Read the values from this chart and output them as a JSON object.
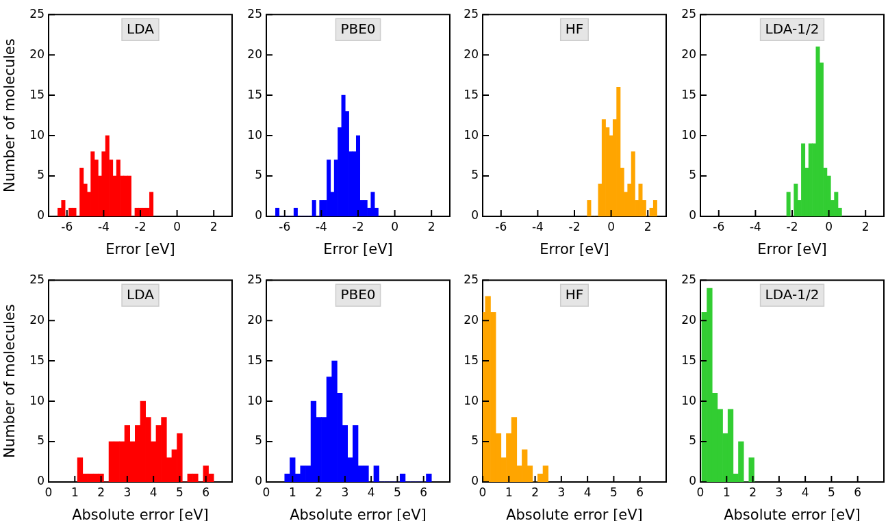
{
  "chart_data": [
    {
      "type": "histogram",
      "title": "LDA",
      "xlabel": "Error [eV]",
      "ylabel": "Number of molecules",
      "color": "#ff0000",
      "bins": [
        -6.5,
        -6.3,
        -6.1,
        -5.9,
        -5.7,
        -5.5,
        -5.3,
        -5.1,
        -4.9,
        -4.7,
        -4.5,
        -4.3,
        -4.1,
        -3.9,
        -3.7,
        -3.5,
        -3.3,
        -3.1,
        -2.9,
        -2.7,
        -2.5,
        -2.3,
        -2.1,
        -1.9,
        -1.7,
        -1.5,
        -1.3
      ],
      "values": [
        1,
        2,
        0,
        1,
        1,
        0,
        6,
        4,
        3,
        8,
        7,
        5,
        8,
        10,
        7,
        5,
        7,
        5,
        5,
        5,
        0,
        1,
        1,
        1,
        1,
        3
      ],
      "xlim": [
        -7,
        3
      ],
      "xticks": [
        -6,
        -4,
        -2,
        0,
        2
      ],
      "ylim": [
        0,
        25
      ],
      "yticks": [
        0,
        5,
        10,
        15,
        20,
        25
      ]
    },
    {
      "type": "histogram",
      "title": "PBE0",
      "xlabel": "Error [eV]",
      "color": "#0000ff",
      "bins": [
        -6.5,
        -6.3,
        -6.1,
        -5.9,
        -5.7,
        -5.5,
        -5.3,
        -5.1,
        -4.9,
        -4.7,
        -4.5,
        -4.3,
        -4.1,
        -3.9,
        -3.7,
        -3.5,
        -3.3,
        -3.1,
        -2.9,
        -2.7,
        -2.5,
        -2.3,
        -2.1,
        -1.9,
        -1.7,
        -1.5,
        -1.3,
        -1.1,
        -0.9
      ],
      "values": [
        1,
        0,
        0,
        0,
        0,
        1,
        0,
        0,
        0,
        0,
        2,
        0,
        2,
        2,
        7,
        3,
        7,
        11,
        15,
        13,
        8,
        8,
        10,
        2,
        2,
        1,
        3,
        1
      ],
      "xlim": [
        -7,
        3
      ],
      "xticks": [
        -6,
        -4,
        -2,
        0,
        2
      ],
      "ylim": [
        0,
        25
      ],
      "yticks": [
        0,
        5,
        10,
        15,
        20,
        25
      ]
    },
    {
      "type": "histogram",
      "title": "HF",
      "xlabel": "Error [eV]",
      "color": "#ffa500",
      "bins": [
        -1.3,
        -1.1,
        -0.9,
        -0.7,
        -0.5,
        -0.3,
        -0.1,
        0.1,
        0.3,
        0.5,
        0.7,
        0.9,
        1.1,
        1.3,
        1.5,
        1.7,
        1.9,
        2.1,
        2.3,
        2.5
      ],
      "values": [
        2,
        0,
        0,
        4,
        12,
        11,
        10,
        12,
        16,
        6,
        3,
        4,
        8,
        2,
        4,
        2,
        0,
        1,
        2
      ],
      "xlim": [
        -7,
        3
      ],
      "xticks": [
        -6,
        -4,
        -2,
        0,
        2
      ],
      "ylim": [
        0,
        25
      ],
      "yticks": [
        0,
        5,
        10,
        15,
        20,
        25
      ]
    },
    {
      "type": "histogram",
      "title": "LDA-1/2",
      "xlabel": "Error [eV]",
      "color": "#32cd32",
      "bins": [
        -2.3,
        -2.1,
        -1.9,
        -1.7,
        -1.5,
        -1.3,
        -1.1,
        -0.9,
        -0.7,
        -0.5,
        -0.3,
        -0.1,
        0.1,
        0.3,
        0.5,
        0.7
      ],
      "values": [
        3,
        0,
        4,
        2,
        9,
        6,
        9,
        9,
        21,
        19,
        6,
        5,
        2,
        3,
        1
      ],
      "xlim": [
        -7,
        3
      ],
      "xticks": [
        -6,
        -4,
        -2,
        0,
        2
      ],
      "ylim": [
        0,
        25
      ],
      "yticks": [
        0,
        5,
        10,
        15,
        20,
        25
      ]
    },
    {
      "type": "histogram",
      "title": "LDA",
      "xlabel": "Absolute error [eV]",
      "ylabel": "Number of molecules",
      "color": "#ff0000",
      "bins": [
        1.1,
        1.3,
        1.5,
        1.7,
        1.9,
        2.1,
        2.3,
        2.5,
        2.7,
        2.9,
        3.1,
        3.3,
        3.5,
        3.7,
        3.9,
        4.1,
        4.3,
        4.5,
        4.7,
        4.9,
        5.1,
        5.3,
        5.5,
        5.7,
        5.9,
        6.1,
        6.3
      ],
      "values": [
        3,
        1,
        1,
        1,
        1,
        0,
        5,
        5,
        5,
        7,
        5,
        7,
        10,
        8,
        5,
        7,
        8,
        3,
        4,
        6,
        0,
        1,
        1,
        0,
        2,
        1
      ],
      "xlim": [
        0,
        7
      ],
      "xticks": [
        0,
        1,
        2,
        3,
        4,
        5,
        6
      ],
      "ylim": [
        0,
        25
      ],
      "yticks": [
        0,
        5,
        10,
        15,
        20,
        25
      ]
    },
    {
      "type": "histogram",
      "title": "PBE0",
      "xlabel": "Absolute error [eV]",
      "color": "#0000ff",
      "bins": [
        0.7,
        0.9,
        1.1,
        1.3,
        1.5,
        1.7,
        1.9,
        2.1,
        2.3,
        2.5,
        2.7,
        2.9,
        3.1,
        3.3,
        3.5,
        3.7,
        3.9,
        4.1,
        4.3,
        4.5,
        4.7,
        4.9,
        5.1,
        5.3,
        5.5,
        5.7,
        5.9,
        6.1,
        6.3
      ],
      "values": [
        1,
        3,
        1,
        2,
        2,
        10,
        8,
        8,
        13,
        15,
        11,
        7,
        3,
        7,
        2,
        2,
        0,
        2,
        0,
        0,
        0,
        0,
        1,
        0,
        0,
        0,
        0,
        1
      ],
      "xlim": [
        0,
        7
      ],
      "xticks": [
        0,
        1,
        2,
        3,
        4,
        5,
        6
      ],
      "ylim": [
        0,
        25
      ],
      "yticks": [
        0,
        5,
        10,
        15,
        20,
        25
      ]
    },
    {
      "type": "histogram",
      "title": "HF",
      "xlabel": "Absolute error [eV]",
      "color": "#ffa500",
      "bins": [
        0,
        0.1,
        0.3,
        0.5,
        0.7,
        0.9,
        1.1,
        1.3,
        1.5,
        1.7,
        1.9,
        2.1,
        2.3,
        2.5
      ],
      "values": [
        21,
        23,
        21,
        6,
        3,
        6,
        8,
        2,
        4,
        2,
        0,
        1,
        2
      ],
      "xlim": [
        0,
        7
      ],
      "xticks": [
        0,
        1,
        2,
        3,
        4,
        5,
        6
      ],
      "ylim": [
        0,
        25
      ],
      "yticks": [
        0,
        5,
        10,
        15,
        20,
        25
      ]
    },
    {
      "type": "histogram",
      "title": "LDA-1/2",
      "xlabel": "Absolute error [eV]",
      "color": "#32cd32",
      "bins": [
        0.05,
        0.25,
        0.45,
        0.65,
        0.85,
        1.05,
        1.25,
        1.45,
        1.65,
        1.85,
        2.05
      ],
      "values": [
        21,
        24,
        11,
        9,
        6,
        9,
        1,
        5,
        0,
        3
      ],
      "xlim": [
        0,
        7
      ],
      "xticks": [
        0,
        1,
        2,
        3,
        4,
        5,
        6
      ],
      "ylim": [
        0,
        25
      ],
      "yticks": [
        0,
        5,
        10,
        15,
        20,
        25
      ]
    }
  ]
}
